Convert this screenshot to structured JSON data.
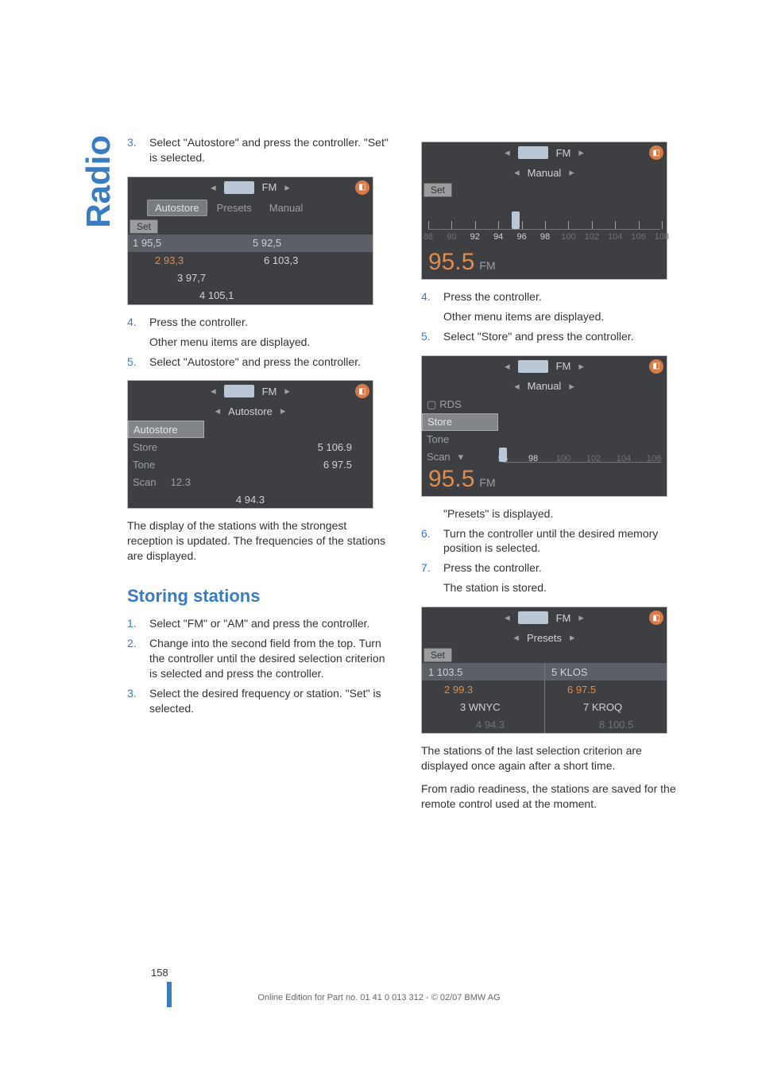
{
  "sideTab": "Radio",
  "colors": {
    "accent": "#3a7cc4",
    "orange": "#e28b4a",
    "panelBg": "#3d3f42",
    "panelText": "#cfd3d8",
    "panelDim": "#9aa0a6",
    "panelHilite": "#5a6066",
    "chip": "#9a9d9f"
  },
  "left": {
    "step3": "Select \"Autostore\" and press the controller. \"Set\" is selected.",
    "shot1": {
      "topBand": "FM",
      "tabs": [
        "Autostore",
        "Presets",
        "Manual"
      ],
      "selectedTab": 0,
      "setLabel": "Set",
      "rows": [
        {
          "l": "1 95,5",
          "r": "5 92,5",
          "hl": true
        },
        {
          "l": "2 93,3",
          "r": "6 103,3",
          "lOrange": true
        },
        {
          "l": "3 97,7",
          "r": ""
        },
        {
          "l": "4 105,1",
          "r": ""
        }
      ]
    },
    "step4a": "Press the controller.",
    "step4b": "Other menu items are displayed.",
    "step5": "Select \"Autostore\" and press the controller.",
    "shot2": {
      "topBand": "FM",
      "subLabel": "Autostore",
      "menu": [
        "Autostore",
        "Store",
        "Tone",
        "Scan"
      ],
      "selectedMenu": 0,
      "lines": [
        "5 106.9",
        "6 97.5"
      ],
      "scanVal": "12.3",
      "footer": "4 94.3"
    },
    "para1": "The display of the stations with the strongest reception is updated. The frequencies of the stations are displayed.",
    "h2": "Storing stations",
    "s1": "Select \"FM\" or \"AM\" and press the controller.",
    "s2": "Change into the second field from the top. Turn the controller until the desired selection criterion is selected and press the controller.",
    "s3": "Select the desired frequency or station. \"Set\" is selected."
  },
  "right": {
    "shot3": {
      "topBand": "FM",
      "subLabel": "Manual",
      "setLabel": "Set",
      "ticks": [
        88,
        90,
        92,
        94,
        96,
        98,
        100,
        102,
        104,
        106,
        108
      ],
      "brightTicks": [
        92,
        94,
        96,
        98
      ],
      "handleAt": 95.5,
      "freq": "95.5",
      "unit": "FM"
    },
    "step4a": "Press the controller.",
    "step4b": "Other menu items are displayed.",
    "step5": "Select \"Store\" and press the controller.",
    "shot4": {
      "topBand": "FM",
      "subLabel": "Manual",
      "menu": [
        "RDS",
        "Store",
        "Tone",
        "Scan"
      ],
      "rdsCheckbox": true,
      "selectedMenu": 1,
      "ticks": [
        96,
        98,
        100,
        102,
        104,
        106
      ],
      "brightTicks": [
        96,
        98
      ],
      "freq": "95.5",
      "unit": "FM"
    },
    "afterShot4": "\"Presets\" is displayed.",
    "step6": "Turn the controller until the desired memory position is selected.",
    "step7a": "Press the controller.",
    "step7b": "The station is stored.",
    "shot5": {
      "topBand": "FM",
      "subLabel": "Presets",
      "setLabel": "Set",
      "rows": [
        {
          "l": "1 103.5",
          "r": "5 KLOS",
          "hl": true
        },
        {
          "l": "2 99.3",
          "r": "6 97.5",
          "lOrange": true,
          "rOrange": true
        },
        {
          "l": "3 WNYC",
          "r": "7 KROQ"
        },
        {
          "l": "4 94.3",
          "r": "8 100.5",
          "dim": true
        }
      ]
    },
    "para2": "The stations of the last selection criterion are displayed once again after a short time.",
    "para3": "From radio readiness, the stations are saved for the remote control used at the moment."
  },
  "pageNum": "158",
  "footer": "Online Edition for Part no. 01 41 0 013 312 - © 02/07 BMW AG"
}
